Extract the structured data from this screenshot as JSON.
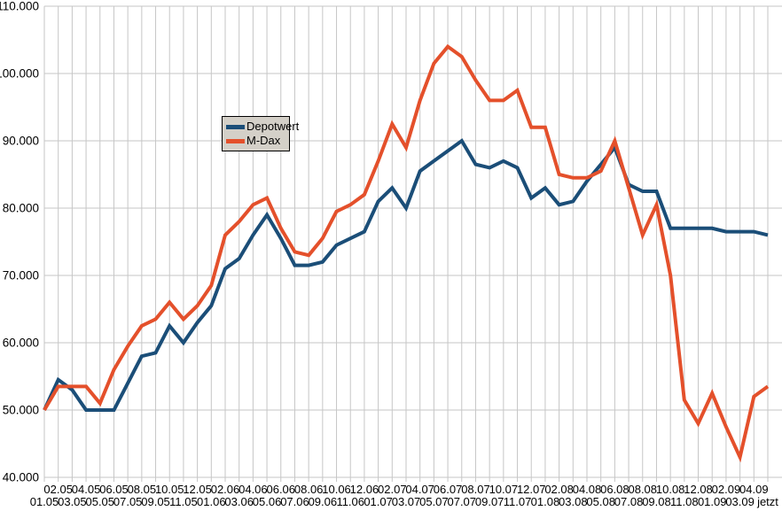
{
  "chart_data": {
    "type": "line",
    "title": "",
    "xlabel": "",
    "ylabel": "",
    "categories": [
      "01.05",
      "02.05",
      "03.05",
      "04.05",
      "05.05",
      "06.05",
      "07.05",
      "08.05",
      "09.05",
      "10.05",
      "11.05",
      "12.05",
      "01.06",
      "02.06",
      "03.06",
      "04.06",
      "05.06",
      "06.06",
      "07.06",
      "08.06",
      "09.06",
      "10.06",
      "11.06",
      "12.06",
      "01.07",
      "02.07",
      "03.07",
      "04.07",
      "05.07",
      "06.07",
      "07.07",
      "08.07",
      "09.07",
      "10.07",
      "11.07",
      "12.07",
      "01.08",
      "02.08",
      "03.08",
      "04.08",
      "05.08",
      "06.08",
      "07.08",
      "08.08",
      "09.08",
      "10.08",
      "11.08",
      "12.08",
      "01.09",
      "02.09",
      "03.09",
      "04.09",
      "jetzt"
    ],
    "series": [
      {
        "name": "Depotwert",
        "color": "#1b4e78",
        "values": [
          50000,
          54500,
          53000,
          50000,
          50000,
          50000,
          54000,
          58000,
          58500,
          62500,
          60000,
          63000,
          65500,
          71000,
          72500,
          76000,
          79000,
          75500,
          71500,
          71500,
          72000,
          74500,
          75500,
          76500,
          81000,
          83000,
          80000,
          85500,
          87000,
          88500,
          90000,
          86500,
          86000,
          87000,
          86000,
          81500,
          83000,
          80500,
          81000,
          84000,
          86500,
          89000,
          83500,
          82500,
          82500,
          77000,
          77000,
          77000,
          77000,
          76500,
          76500,
          76500,
          76000
        ]
      },
      {
        "name": "M-Dax",
        "color": "#e4502b",
        "values": [
          50000,
          53500,
          53500,
          53500,
          51000,
          56000,
          59500,
          62500,
          63500,
          66000,
          63500,
          65500,
          68500,
          76000,
          78000,
          80500,
          81500,
          77000,
          73500,
          73000,
          75500,
          79500,
          80500,
          82000,
          87000,
          92500,
          89000,
          96000,
          101500,
          104000,
          102500,
          99000,
          96000,
          96000,
          97500,
          92000,
          92000,
          85000,
          84500,
          84500,
          85500,
          90000,
          83000,
          76000,
          80500,
          70000,
          51500,
          48000,
          52500,
          47500,
          43000,
          52000,
          53500
        ]
      }
    ],
    "ylim": [
      40000,
      110000
    ],
    "ytick_step": 10000,
    "ytick_labels": [
      "40.000",
      "50.000",
      "60.000",
      "70.000",
      "80.000",
      "90.000",
      "100.000",
      "110.000"
    ],
    "grid": true,
    "legend_position": "upper-left"
  },
  "colors": {
    "grid": "#c6c6c6",
    "background": "#ffffff",
    "legend_background": "#d4d0c8",
    "legend_border": "#000000",
    "axis_text": "#000000"
  }
}
